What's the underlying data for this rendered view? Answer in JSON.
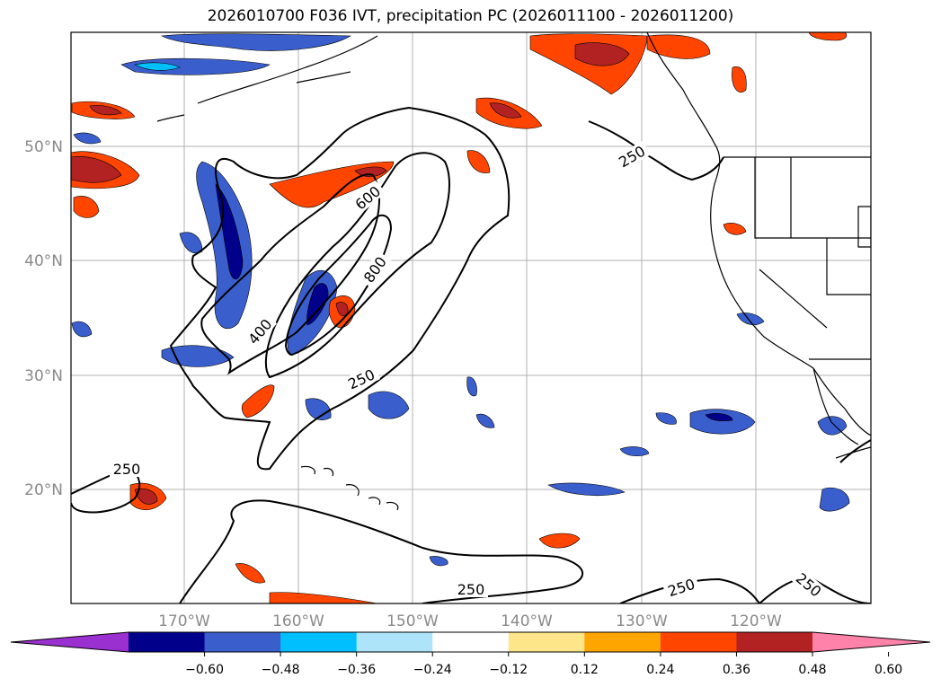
{
  "title": "2026010700 F036 IVT, precipitation PC (2026011100 - 2026011200)",
  "lat_labels": [
    "50°N",
    "40°N",
    "30°N",
    "20°N"
  ],
  "lon_labels": [
    "170°W",
    "160°W",
    "150°W",
    "140°W",
    "130°W",
    "120°W"
  ],
  "contour_labels": [
    "250",
    "250",
    "250",
    "250",
    "250",
    "250",
    "400",
    "600",
    "800"
  ],
  "colorbar": {
    "ticks": [
      "−0.60",
      "−0.48",
      "−0.36",
      "−0.24",
      "−0.12",
      "0.12",
      "0.24",
      "0.36",
      "0.48",
      "0.60"
    ],
    "colors": [
      "#9b30d0",
      "#00008b",
      "#3a5fcd",
      "#00bfff",
      "#ade4fa",
      "#ffffff",
      "#fde68a",
      "#ffa500",
      "#ff4500",
      "#b22222",
      "#ff82ab"
    ]
  },
  "colors": {
    "contour": "#000000",
    "coast": "#000000",
    "grid": "#b0b0b0"
  }
}
